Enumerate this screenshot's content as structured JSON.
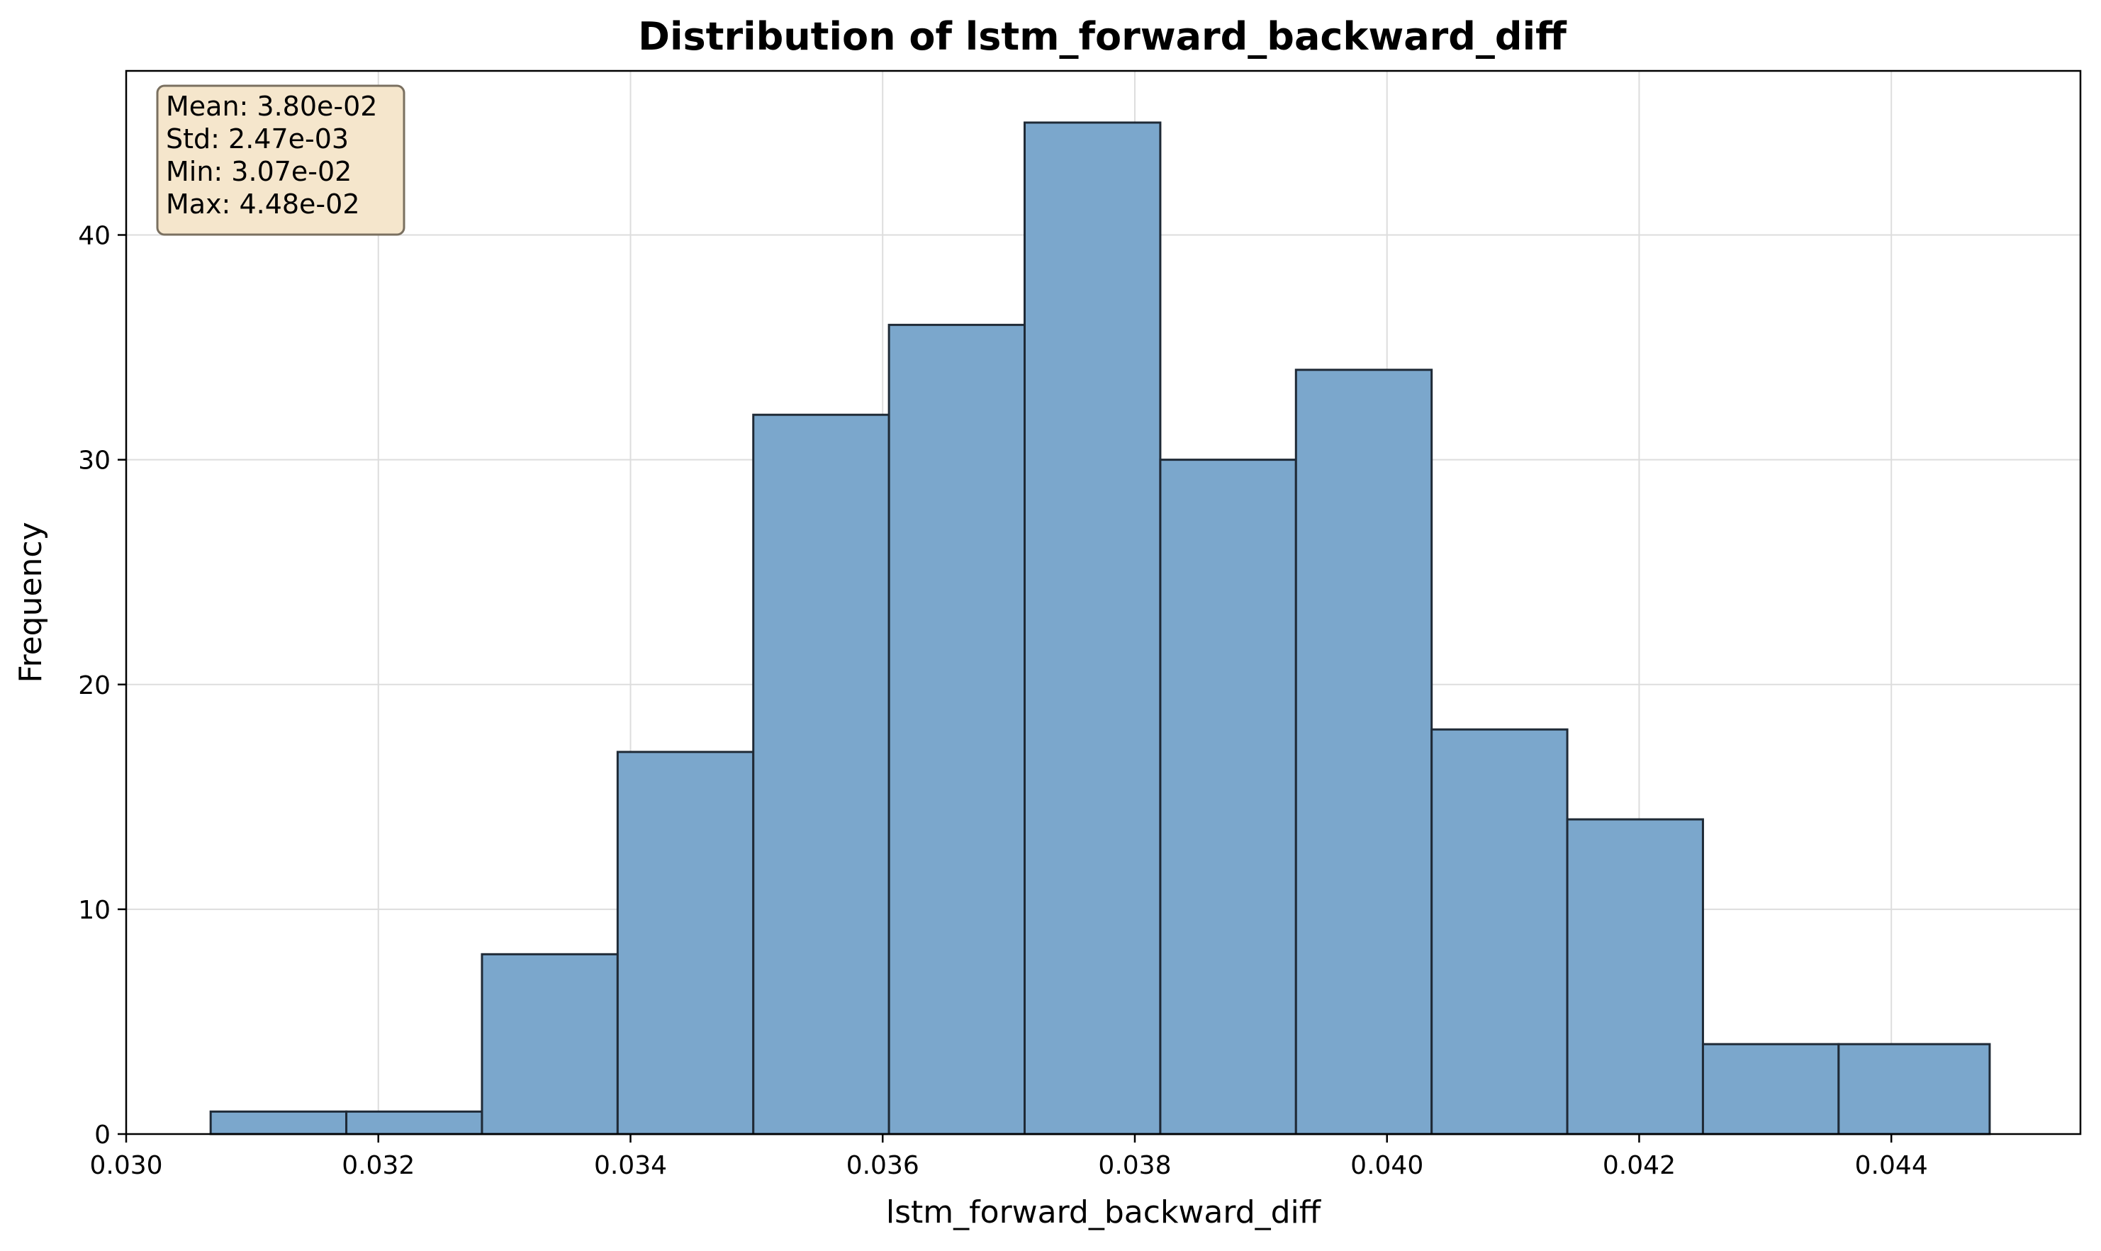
{
  "chart_data": {
    "type": "bar",
    "title": "Distribution of lstm_forward_backward_diff",
    "xlabel": "lstm_forward_backward_diff",
    "ylabel": "Frequency",
    "bin_edges": [
      0.03067,
      0.031746,
      0.032822,
      0.033898,
      0.034974,
      0.03605,
      0.037126,
      0.038202,
      0.039278,
      0.040354,
      0.04143,
      0.042506,
      0.043582,
      0.04478
    ],
    "values": [
      1,
      1,
      8,
      17,
      32,
      36,
      45,
      30,
      34,
      18,
      14,
      4,
      4
    ],
    "xlim": [
      0.03,
      0.0455
    ],
    "ylim": [
      0,
      47.3
    ],
    "x_ticks": [
      0.03,
      0.032,
      0.034,
      0.036,
      0.038,
      0.04,
      0.042,
      0.044
    ],
    "x_tick_labels": [
      "0.030",
      "0.032",
      "0.034",
      "0.036",
      "0.038",
      "0.040",
      "0.042",
      "0.044"
    ],
    "y_ticks": [
      0,
      10,
      20,
      30,
      40
    ],
    "y_tick_labels": [
      "0",
      "10",
      "20",
      "30",
      "40"
    ],
    "grid": true,
    "bar_color": "#7ba7cc",
    "bar_edge_color": "#1f2a36",
    "stats_box": {
      "position": "top-left",
      "lines": [
        "Mean: 3.80e-02",
        "Std: 2.47e-03",
        "Min: 3.07e-02",
        "Max: 4.48e-02"
      ],
      "background": "#f5e6cc",
      "border": "#7a7060"
    }
  }
}
